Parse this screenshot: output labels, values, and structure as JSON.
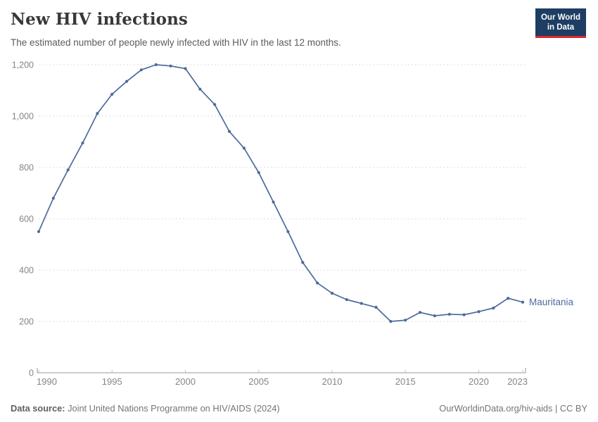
{
  "header": {
    "title": "New HIV infections",
    "subtitle": "The estimated number of people newly infected with HIV in the last 12 months.",
    "logo": {
      "line1": "Our World",
      "line2": "in Data",
      "bg_color": "#1d3d63",
      "accent_color": "#d7282f"
    }
  },
  "chart_data": {
    "type": "line",
    "title": "New HIV infections",
    "xlabel": "",
    "ylabel": "",
    "x": [
      1990,
      1991,
      1992,
      1993,
      1994,
      1995,
      1996,
      1997,
      1998,
      1999,
      2000,
      2001,
      2002,
      2003,
      2004,
      2005,
      2006,
      2007,
      2008,
      2009,
      2010,
      2011,
      2012,
      2013,
      2014,
      2015,
      2016,
      2017,
      2018,
      2019,
      2020,
      2021,
      2022,
      2023
    ],
    "series": [
      {
        "name": "Mauritania",
        "values": [
          550,
          680,
          790,
          895,
          1010,
          1085,
          1135,
          1180,
          1200,
          1195,
          1185,
          1105,
          1045,
          940,
          875,
          780,
          665,
          550,
          430,
          350,
          310,
          285,
          270,
          255,
          200,
          205,
          235,
          222,
          228,
          226,
          238,
          252,
          290,
          275
        ]
      }
    ],
    "ylim": [
      0,
      1200
    ],
    "yticks": [
      0,
      200,
      400,
      600,
      800,
      1000,
      1200
    ],
    "xticks": [
      1990,
      1995,
      2000,
      2005,
      2010,
      2015,
      2020,
      2023
    ],
    "grid": true,
    "legend_position": "end-of-line-label",
    "colors": {
      "line": "#4c6a9c",
      "grid": "#dedede",
      "axis": "#9a9a9a",
      "axis_tick": "#c0c0c0",
      "tick_label": "#858585"
    }
  },
  "footer": {
    "source_label": "Data source:",
    "source_text": " Joint United Nations Programme on HIV/AIDS (2024)",
    "credit": "OurWorldinData.org/hiv-aids | CC BY"
  }
}
